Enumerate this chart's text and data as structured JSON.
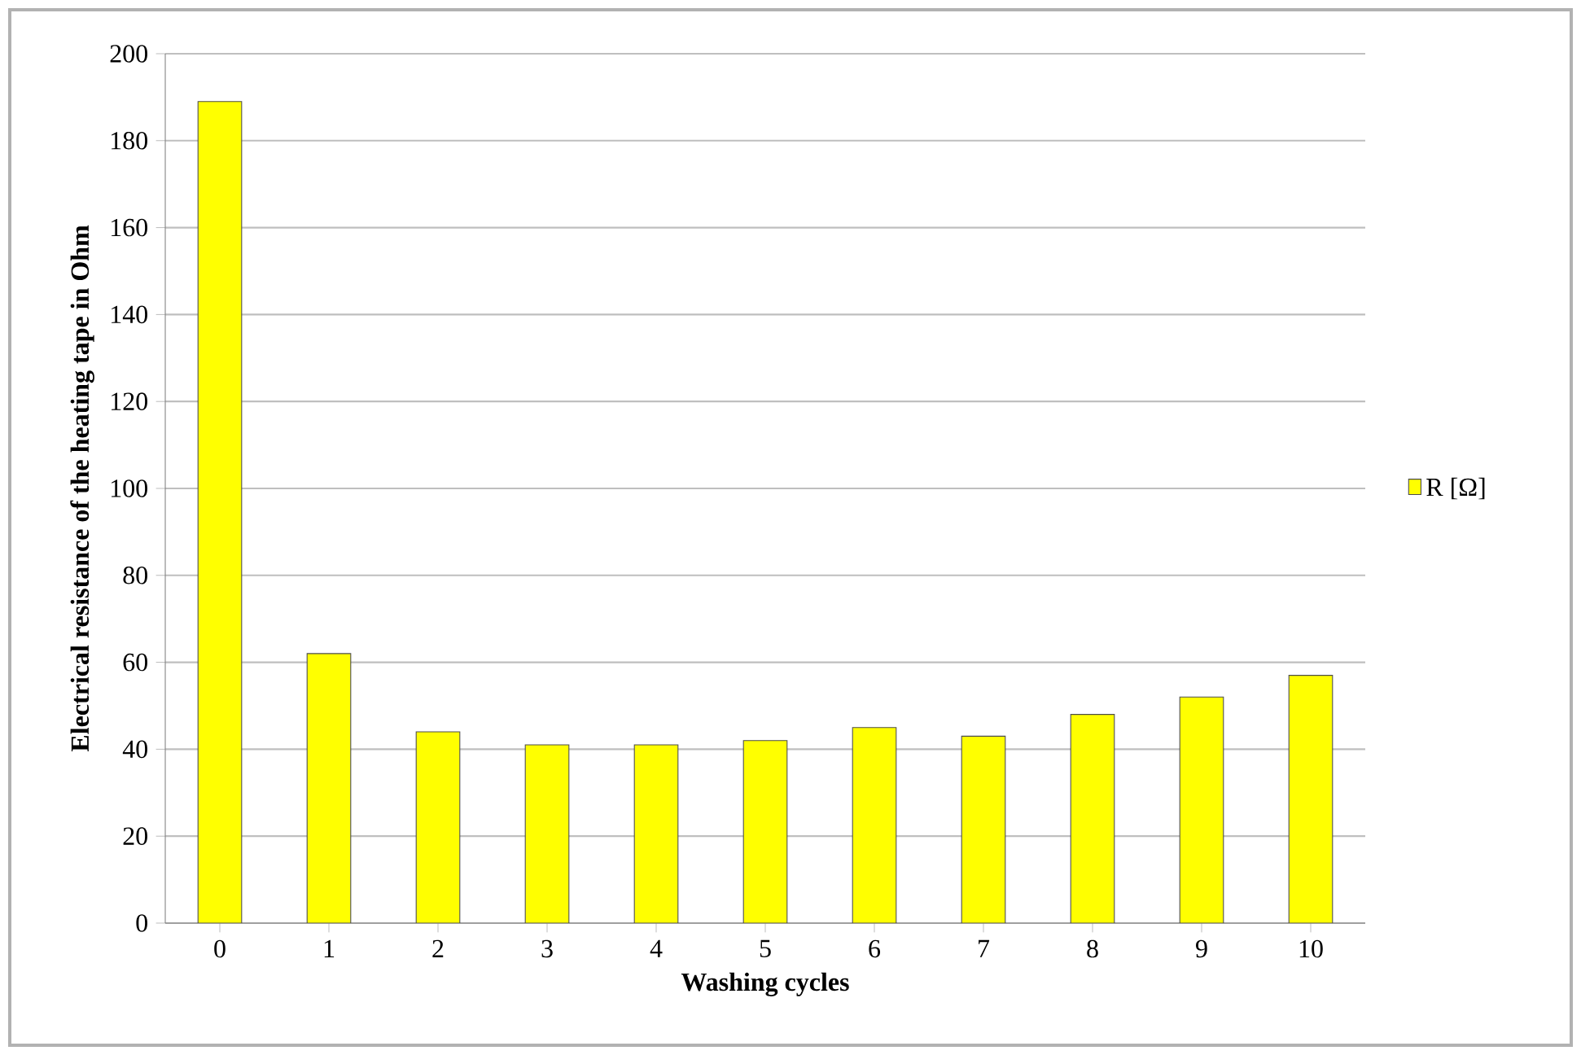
{
  "chart_data": {
    "type": "bar",
    "xlabel": "Washing cycles",
    "ylabel": "Electrical resistance of the heating tape in Ohm",
    "categories": [
      "0",
      "1",
      "2",
      "3",
      "4",
      "5",
      "6",
      "7",
      "8",
      "9",
      "10"
    ],
    "series": [
      {
        "name": "R [Ω]",
        "color": "#ffff00",
        "values": [
          189,
          62,
          44,
          41,
          41,
          42,
          45,
          43,
          48,
          52,
          57
        ]
      }
    ],
    "ylim": [
      0,
      200
    ],
    "yticks": [
      0,
      20,
      40,
      60,
      80,
      100,
      120,
      140,
      160,
      180,
      200
    ],
    "grid": "y",
    "legend": "right"
  }
}
